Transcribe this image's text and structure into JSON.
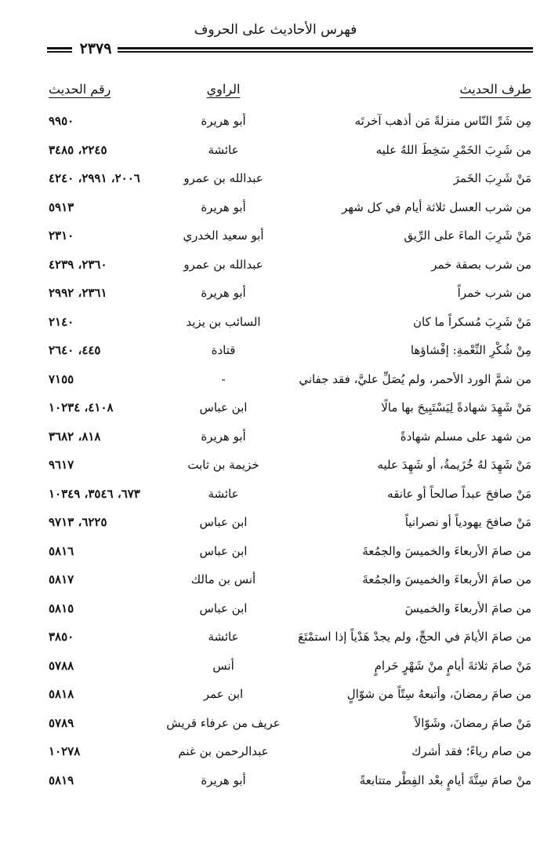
{
  "header": {
    "title": "فهرس الأحاديث على الحروف",
    "page_number": "٢٣٧٩"
  },
  "columns": {
    "hadith": "طرف الحديث",
    "narrator": "الراوي",
    "number": "رقم الحديث"
  },
  "rows": [
    {
      "hadith": "مِن شَرِّ النّاس منزلةً مَن أذهب آخرتَه",
      "narrator": "أبو هريرة",
      "number": "٩٩٥٠"
    },
    {
      "hadith": "من شَرِبَ الخَمْرِ سَخِطَ اللهُ عليه",
      "narrator": "عائشة",
      "number": "٢٢٤٥، ٣٤٨٥"
    },
    {
      "hadith": "مَنْ شَرِبَ الخَمرَ",
      "narrator": "عبدالله بن عمرو",
      "number": "٢٠٠٦، ٢٩٩١، ٤٢٤٠"
    },
    {
      "hadith": "من شرب العسل ثلاثة أيام في كل شهر",
      "narrator": "أبو هريرة",
      "number": "٥٩١٣"
    },
    {
      "hadith": "مَنْ شَرِبَ الماءَ على الرِّيق",
      "narrator": "أبو سعيد الخدري",
      "number": "٢٣١٠"
    },
    {
      "hadith": "من شرب بصقة خمر",
      "narrator": "عبدالله بن عمرو",
      "number": "٢٣٦٠، ٤٢٣٩"
    },
    {
      "hadith": "من شرب خمراً",
      "narrator": "أبو هريرة",
      "number": "٢٣٦١، ٢٩٩٢"
    },
    {
      "hadith": "مَنْ شَرِبَ مُسكراً ما كان",
      "narrator": "السائب بن يزيد",
      "number": "٢١٤٠"
    },
    {
      "hadith": "مِنْ شُكْرِ النِّعْمةِ: إفْشاؤها",
      "narrator": "قتادة",
      "number": "٤٤٥، ٢٦٤٠"
    },
    {
      "hadith": "من شمَّ الورد الأحمر، ولم يُصَلِّ عليَّ، فقد جفاني",
      "narrator": "-",
      "number": "٧١٥٥"
    },
    {
      "hadith": "مَنْ شَهِدَ شهادةً لِيَسْتَبِيحَ بها مالًا",
      "narrator": "ابن عباس",
      "number": "٤١٠٨، ١٠٢٣٤"
    },
    {
      "hadith": "من شهد على مسلم شهادةً",
      "narrator": "أبو هريرة",
      "number": "٨١٨، ٣٦٨٢"
    },
    {
      "hadith": "مَنْ شَهِدَ لهُ خُزَيمةُ، أو شَهِدَ عليه",
      "narrator": "خزيمة بن ثابت",
      "number": "٩٦١٧"
    },
    {
      "hadith": "مَنْ صافحَ عبداً صالحاً أو عانقه",
      "narrator": "عائشة",
      "number": "٦٧٣، ٣٥٤٦، ١٠٣٤٩"
    },
    {
      "hadith": "مَنْ صافحَ يهودياً أو نصرانياً",
      "narrator": "ابن عباس",
      "number": "٦٢٢٥، ٩٧١٣"
    },
    {
      "hadith": "من صامَ الأربعاءَ والخميسَ والجمُعةَ",
      "narrator": "ابن عباس",
      "number": "٥٨١٦"
    },
    {
      "hadith": "من صامَ الأربعاءَ والخميسَ والجمُعةَ",
      "narrator": "أنس بن مالك",
      "number": "٥٨١٧"
    },
    {
      "hadith": "من صامَ الأربعاءَ والخميسَ",
      "narrator": "ابن عباس",
      "number": "٥٨١٥"
    },
    {
      "hadith": "من صامَ الأيامَ في الحجِّ، ولم يجدْ هَدْياً إذا استمْتَعَ",
      "narrator": "عائشة",
      "number": "٣٨٥٠"
    },
    {
      "hadith": "مَنْ صامَ ثلاثةَ أيامٍ منْ شَهْرٍ حَرامٍ",
      "narrator": "أنس",
      "number": "٥٧٨٨"
    },
    {
      "hadith": "من صامَ رمضانَ، وأتبعهُ سِتّاً من شوّالٍ",
      "narrator": "ابن عمر",
      "number": "٥٨١٨"
    },
    {
      "hadith": "مَنْ صامَ رمضانَ، وشَوّالاً",
      "narrator": "عريف من عرفاء قريش",
      "number": "٥٧٨٩"
    },
    {
      "hadith": "من صام رياءً؛ فقد أشرك",
      "narrator": "عبدالرحمن بن غنم",
      "number": "١٠٢٧٨"
    },
    {
      "hadith": "منْ صامَ سِتَّةَ أيامٍ بعْد الفِطْر متتابعةً",
      "narrator": "أبو هريرة",
      "number": "٥٨١٩"
    }
  ]
}
